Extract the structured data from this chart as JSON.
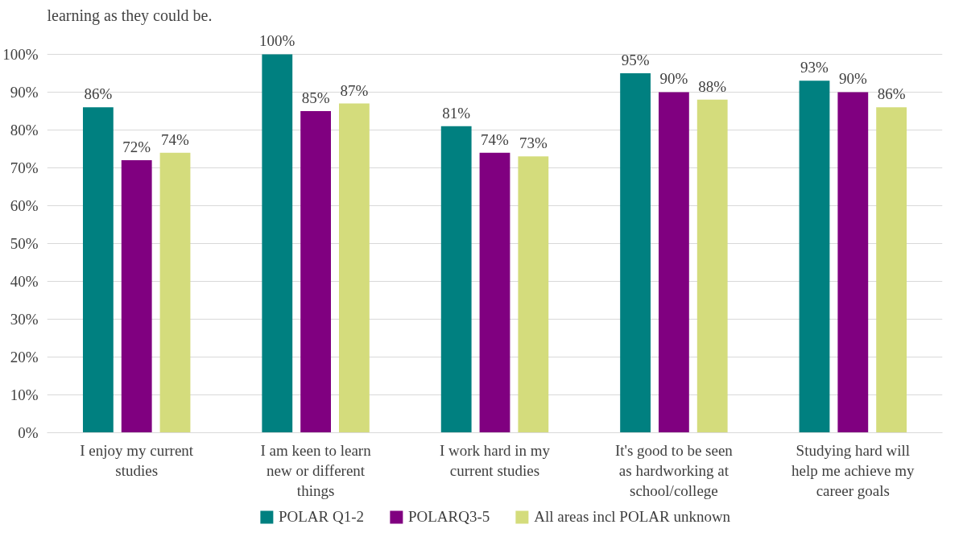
{
  "chart_data": {
    "type": "bar",
    "title": "learning as they could be.",
    "categories": [
      "I enjoy my current studies",
      "I am keen to learn new or different things",
      "I work hard in my current studies",
      "It's good to be seen as hardworking at school/college",
      "Studying hard will help me achieve my career goals"
    ],
    "series": [
      {
        "name": "POLAR Q1-2",
        "color": "#008080",
        "values": [
          86,
          100,
          81,
          95,
          93
        ],
        "value_labels": [
          "86%",
          "100%",
          "81%",
          "95%",
          "93%"
        ]
      },
      {
        "name": "POLARQ3-5",
        "color": "#800080",
        "values": [
          72,
          85,
          74,
          90,
          90
        ],
        "value_labels": [
          "72%",
          "85%",
          "74%",
          "90%",
          "90%"
        ]
      },
      {
        "name": "All areas incl POLAR unknown",
        "color": "#d4dc7c",
        "values": [
          74,
          87,
          73,
          88,
          86
        ],
        "value_labels": [
          "74%",
          "87%",
          "73%",
          "88%",
          "86%"
        ]
      }
    ],
    "ylim": [
      0,
      100
    ],
    "yticks": [
      {
        "value": 0,
        "label": "0%"
      },
      {
        "value": 10,
        "label": "10%"
      },
      {
        "value": 20,
        "label": "20%"
      },
      {
        "value": 30,
        "label": "30%"
      },
      {
        "value": 40,
        "label": "40%"
      },
      {
        "value": 50,
        "label": "50%"
      },
      {
        "value": 60,
        "label": "60%"
      },
      {
        "value": 70,
        "label": "70%"
      },
      {
        "value": 80,
        "label": "80%"
      },
      {
        "value": 90,
        "label": "90%"
      },
      {
        "value": 100,
        "label": "100%"
      }
    ],
    "grid": "y",
    "legend": "bottom"
  }
}
